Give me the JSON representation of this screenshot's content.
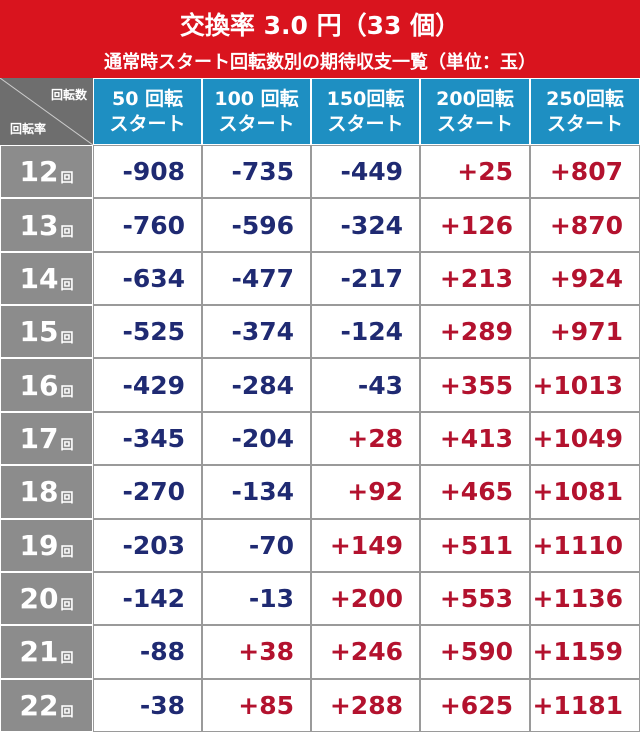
{
  "header": {
    "title": "交換率 3.0 円（33 個）",
    "subtitle": "通常時スタート回転数別の期待収支一覧（単位：玉）"
  },
  "table": {
    "corner": {
      "top": "回転数",
      "bottom": "回転率"
    },
    "columns": [
      {
        "line1": "50 回転",
        "line2": "スタート"
      },
      {
        "line1": "100 回転",
        "line2": "スタート"
      },
      {
        "line1": "150回転",
        "line2": "スタート"
      },
      {
        "line1": "200回転",
        "line2": "スタート"
      },
      {
        "line1": "250回転",
        "line2": "スタート"
      }
    ],
    "rows": [
      {
        "count": "12",
        "unit": "回",
        "cells": [
          "-908",
          "-735",
          "-449",
          "+25",
          "+807"
        ]
      },
      {
        "count": "13",
        "unit": "回",
        "cells": [
          "-760",
          "-596",
          "-324",
          "+126",
          "+870"
        ]
      },
      {
        "count": "14",
        "unit": "回",
        "cells": [
          "-634",
          "-477",
          "-217",
          "+213",
          "+924"
        ]
      },
      {
        "count": "15",
        "unit": "回",
        "cells": [
          "-525",
          "-374",
          "-124",
          "+289",
          "+971"
        ]
      },
      {
        "count": "16",
        "unit": "回",
        "cells": [
          "-429",
          "-284",
          "-43",
          "+355",
          "+1013"
        ]
      },
      {
        "count": "17",
        "unit": "回",
        "cells": [
          "-345",
          "-204",
          "+28",
          "+413",
          "+1049"
        ]
      },
      {
        "count": "18",
        "unit": "回",
        "cells": [
          "-270",
          "-134",
          "+92",
          "+465",
          "+1081"
        ]
      },
      {
        "count": "19",
        "unit": "回",
        "cells": [
          "-203",
          "-70",
          "+149",
          "+511",
          "+1110"
        ]
      },
      {
        "count": "20",
        "unit": "回",
        "cells": [
          "-142",
          "-13",
          "+200",
          "+553",
          "+1136"
        ]
      },
      {
        "count": "21",
        "unit": "回",
        "cells": [
          "-88",
          "+38",
          "+246",
          "+590",
          "+1159"
        ]
      },
      {
        "count": "22",
        "unit": "回",
        "cells": [
          "-38",
          "+85",
          "+288",
          "+625",
          "+1181"
        ]
      }
    ]
  }
}
